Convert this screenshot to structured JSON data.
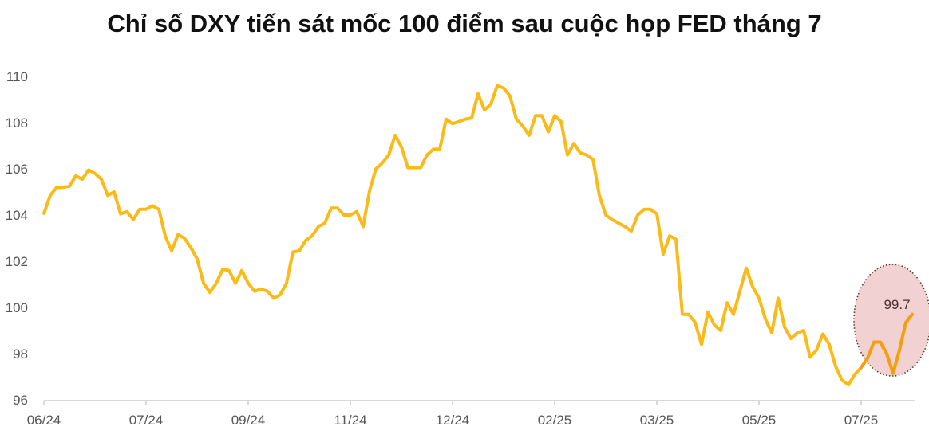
{
  "chart_data": {
    "type": "line",
    "title": "Chỉ số DXY tiến sát mốc 100 điểm sau cuộc họp FED tháng 7",
    "xlabel": "",
    "ylabel": "",
    "ylim": [
      96,
      110
    ],
    "y_ticks": [
      "96",
      "98",
      "100",
      "102",
      "104",
      "106",
      "108",
      "110"
    ],
    "x_ticks": [
      "06/24",
      "07/24",
      "09/24",
      "11/24",
      "12/24",
      "02/25",
      "03/25",
      "05/25",
      "07/25"
    ],
    "grid": false,
    "line_color": "#FBBA16",
    "highlight_color": "#F39C12",
    "highlight_fill": "#EFC9C9",
    "annotation": {
      "label": "99.7",
      "value": 99.7
    },
    "values": [
      104.07,
      104.86,
      105.2,
      105.2,
      105.25,
      105.7,
      105.55,
      105.95,
      105.8,
      105.55,
      104.85,
      105.0,
      104.05,
      104.15,
      103.8,
      104.25,
      104.25,
      104.4,
      104.25,
      103.1,
      102.45,
      103.15,
      103.0,
      102.6,
      102.1,
      101.05,
      100.65,
      101.05,
      101.65,
      101.6,
      101.05,
      101.6,
      101.05,
      100.7,
      100.8,
      100.7,
      100.4,
      100.55,
      101.05,
      102.4,
      102.45,
      102.9,
      103.1,
      103.5,
      103.65,
      104.3,
      104.3,
      104.0,
      104.0,
      104.15,
      103.5,
      105.05,
      106.0,
      106.25,
      106.6,
      107.45,
      106.95,
      106.05,
      106.05,
      106.05,
      106.6,
      106.85,
      106.85,
      108.15,
      107.95,
      108.05,
      108.15,
      108.2,
      109.25,
      108.55,
      108.8,
      109.6,
      109.5,
      109.15,
      108.15,
      107.85,
      107.45,
      108.3,
      108.3,
      107.6,
      108.3,
      108.05,
      106.6,
      107.1,
      106.7,
      106.6,
      106.4,
      104.85,
      104.0,
      103.8,
      103.65,
      103.5,
      103.3,
      104.0,
      104.25,
      104.25,
      104.05,
      102.3,
      103.1,
      102.95,
      99.7,
      99.7,
      99.35,
      98.4,
      99.8,
      99.25,
      99.0,
      100.2,
      99.7,
      100.7,
      101.7,
      100.9,
      100.4,
      99.5,
      98.9,
      100.4,
      99.15,
      98.65,
      98.9,
      99.0,
      97.85,
      98.15,
      98.85,
      98.4,
      97.45,
      96.85,
      96.65,
      97.1,
      97.4,
      97.8,
      98.5,
      98.5,
      98.0,
      97.15,
      98.15,
      99.35,
      99.7
    ]
  }
}
